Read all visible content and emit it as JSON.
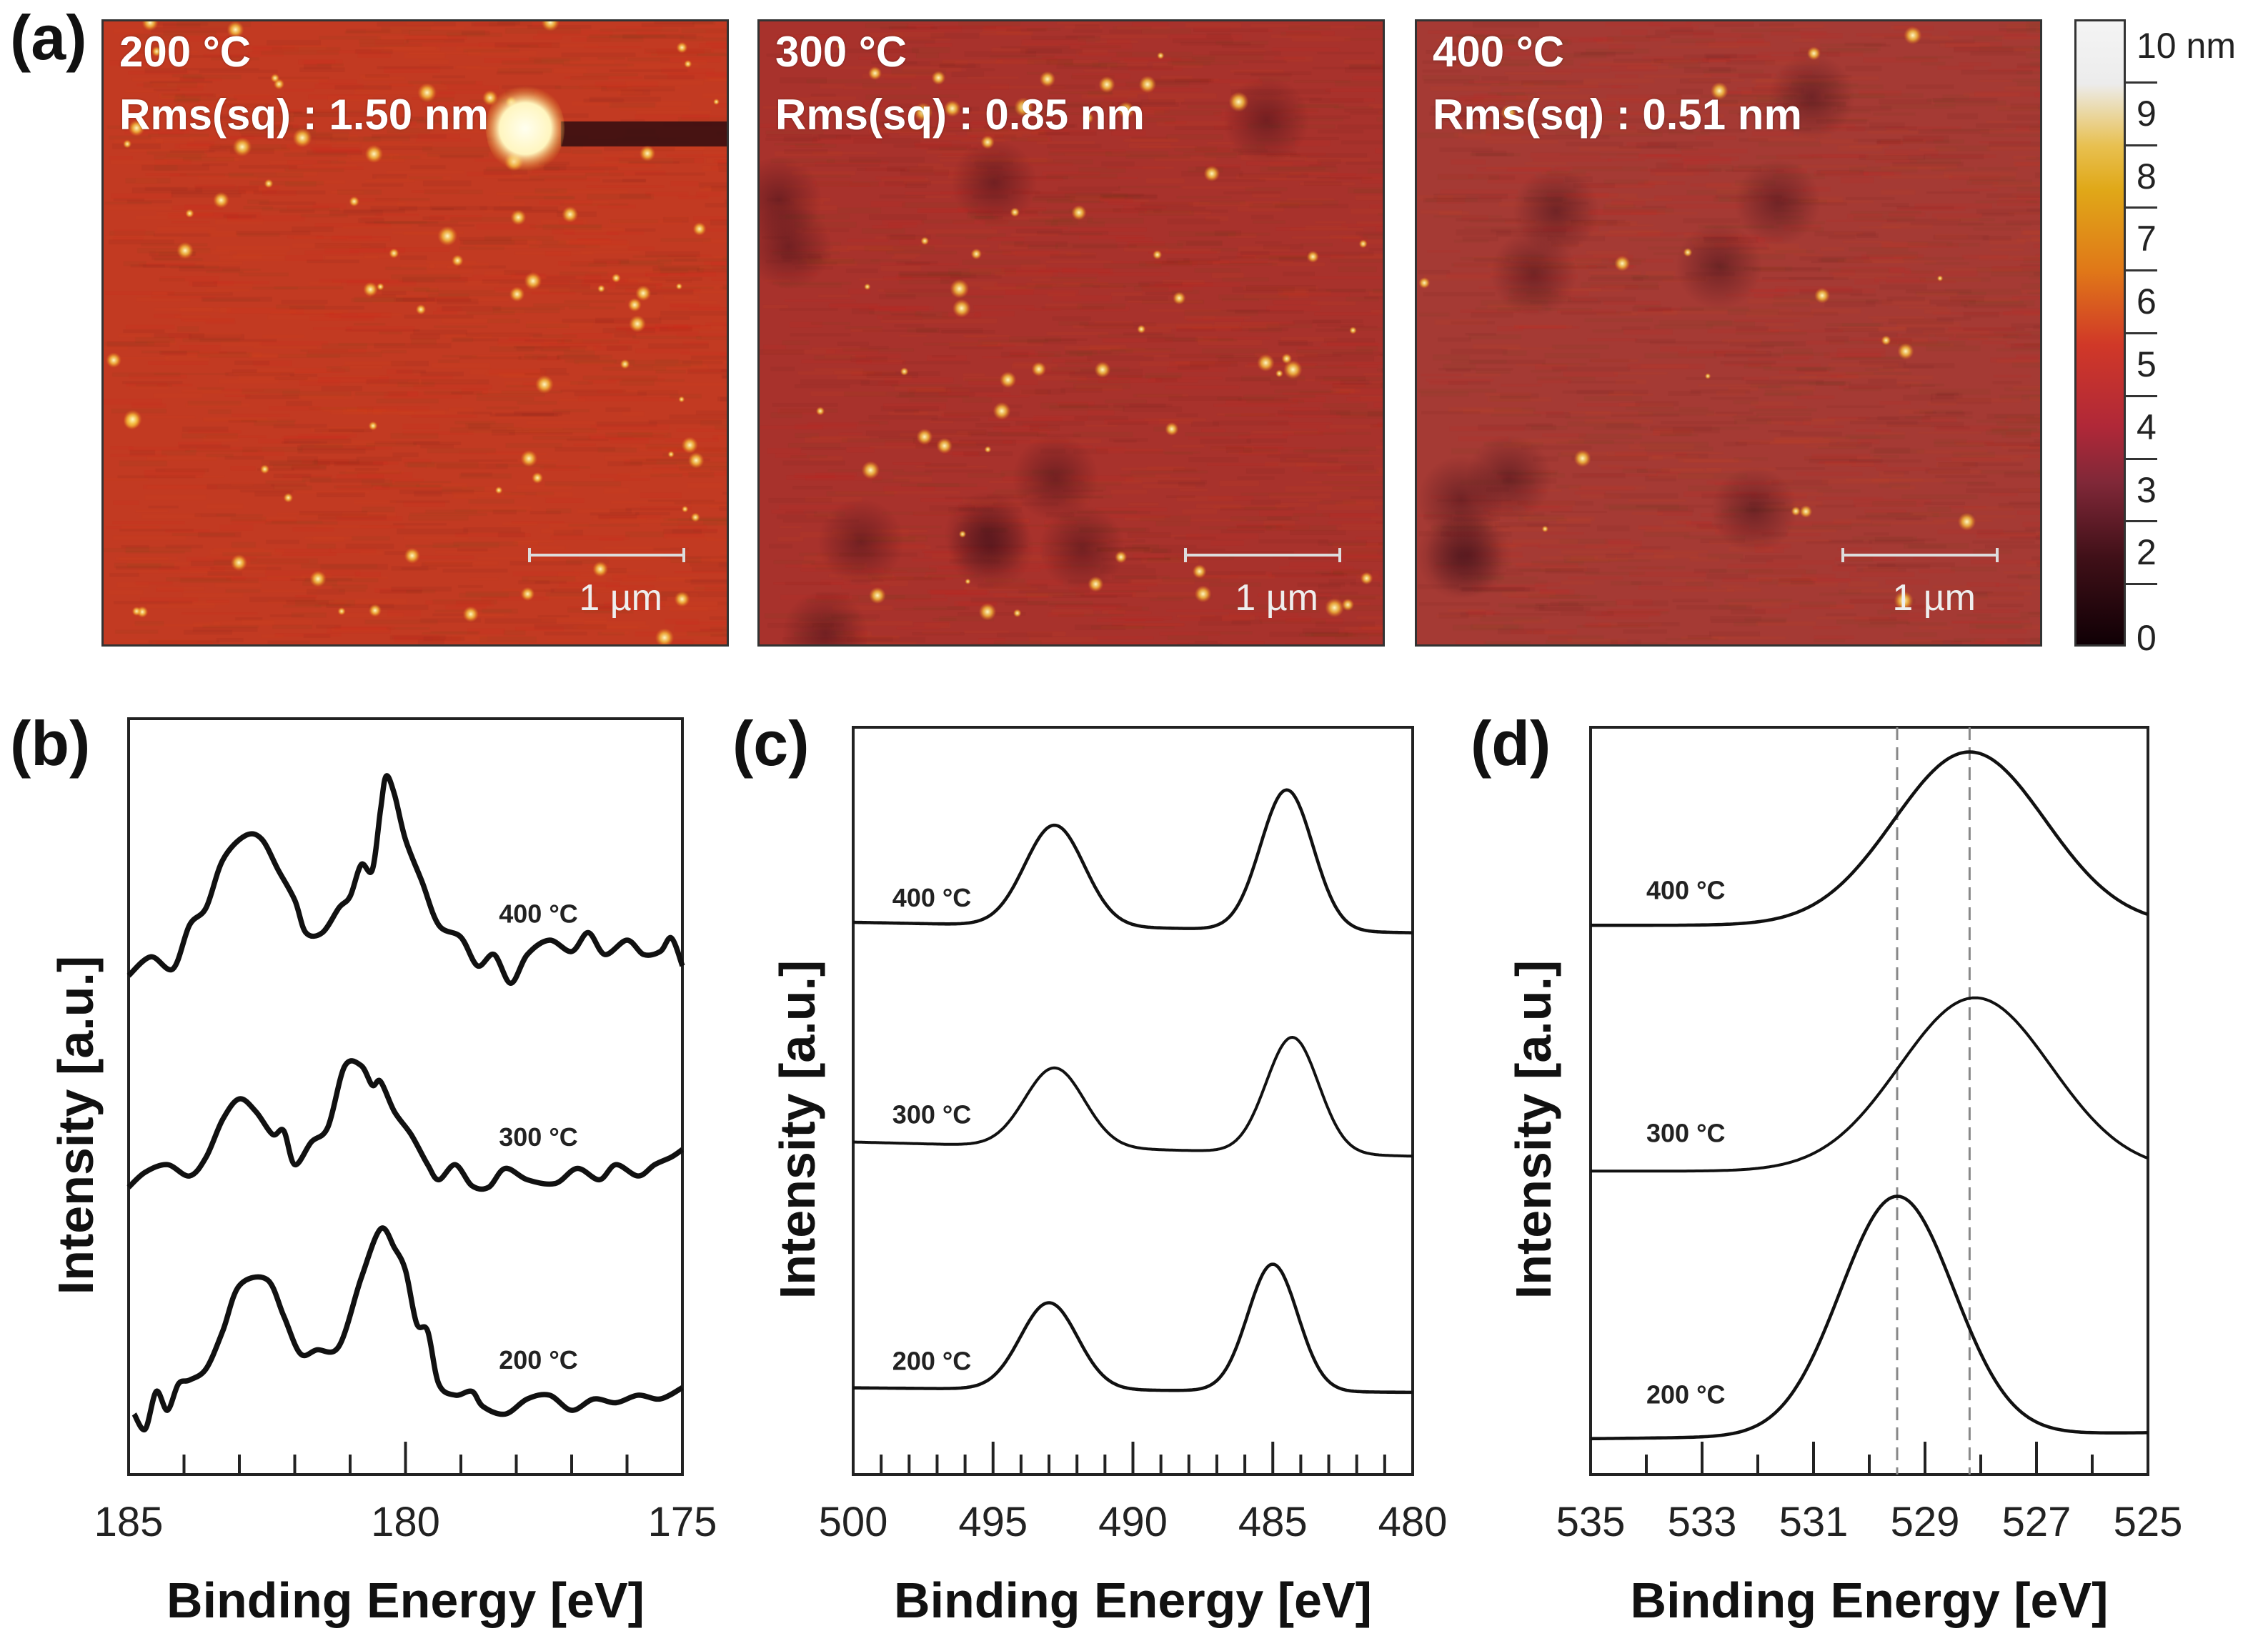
{
  "panel_labels": {
    "a": "(a)",
    "b": "(b)",
    "c": "(c)",
    "d": "(d)"
  },
  "afm": [
    {
      "temp": "200 °C",
      "rms": "Rms(sq) : 1.50 nm",
      "scale": "1 µm",
      "base_color": "#c23a22"
    },
    {
      "temp": "300 °C",
      "rms": "Rms(sq) : 0.85 nm",
      "scale": "1 µm",
      "base_color": "#a8322c"
    },
    {
      "temp": "400 °C",
      "rms": "Rms(sq) : 0.51 nm",
      "scale": "1 µm",
      "base_color": "#a53a34"
    }
  ],
  "colorbar": {
    "unit_label": "10 nm",
    "ticks": [
      "9",
      "8",
      "7",
      "6",
      "5",
      "4",
      "3",
      "2",
      "0"
    ],
    "range": [
      0,
      10
    ]
  },
  "chart_data": [
    {
      "id": "b",
      "type": "line",
      "xlabel": "Binding Energy [eV]",
      "ylabel": "Intensity [a.u.]",
      "xlim": [
        185,
        175
      ],
      "ylim": [
        0,
        10
      ],
      "xticks_major": [
        185,
        180,
        175
      ],
      "xtick_labels": [
        "185",
        "180",
        "175"
      ],
      "minor_step": 1,
      "series": [
        {
          "name": "400 °C",
          "label_at": [
            177.6,
            7.3
          ],
          "points": [
            [
              185,
              6.6
            ],
            [
              184.6,
              6.85
            ],
            [
              184.2,
              6.69
            ],
            [
              183.9,
              7.27
            ],
            [
              183.6,
              7.5
            ],
            [
              183.3,
              8.13
            ],
            [
              182.9,
              8.45
            ],
            [
              182.6,
              8.41
            ],
            [
              182.3,
              8.0
            ],
            [
              182.0,
              7.6
            ],
            [
              181.8,
              7.17
            ],
            [
              181.5,
              7.17
            ],
            [
              181.2,
              7.5
            ],
            [
              181.0,
              7.65
            ],
            [
              180.8,
              8.07
            ],
            [
              180.6,
              8.0
            ],
            [
              180.45,
              8.8
            ],
            [
              180.35,
              9.24
            ],
            [
              180.2,
              9.0
            ],
            [
              180.0,
              8.4
            ],
            [
              179.7,
              7.84
            ],
            [
              179.4,
              7.27
            ],
            [
              179.0,
              7.11
            ],
            [
              178.7,
              6.73
            ],
            [
              178.4,
              6.88
            ],
            [
              178.1,
              6.5
            ],
            [
              177.8,
              6.88
            ],
            [
              177.4,
              7.07
            ],
            [
              177.0,
              6.92
            ],
            [
              176.7,
              7.17
            ],
            [
              176.4,
              6.88
            ],
            [
              176.0,
              7.07
            ],
            [
              175.7,
              6.88
            ],
            [
              175.4,
              6.92
            ],
            [
              175.2,
              7.1
            ],
            [
              175.0,
              6.73
            ]
          ]
        },
        {
          "name": "300 °C",
          "label_at": [
            177.6,
            4.35
          ],
          "points": [
            [
              185,
              3.8
            ],
            [
              184.7,
              4.0
            ],
            [
              184.3,
              4.1
            ],
            [
              183.9,
              3.95
            ],
            [
              183.6,
              4.2
            ],
            [
              183.3,
              4.7
            ],
            [
              183.0,
              4.97
            ],
            [
              182.7,
              4.8
            ],
            [
              182.4,
              4.5
            ],
            [
              182.2,
              4.55
            ],
            [
              182.0,
              4.1
            ],
            [
              181.7,
              4.4
            ],
            [
              181.4,
              4.6
            ],
            [
              181.1,
              5.4
            ],
            [
              180.8,
              5.41
            ],
            [
              180.6,
              5.15
            ],
            [
              180.45,
              5.2
            ],
            [
              180.2,
              4.8
            ],
            [
              179.9,
              4.5
            ],
            [
              179.6,
              4.1
            ],
            [
              179.4,
              3.9
            ],
            [
              179.1,
              4.1
            ],
            [
              178.8,
              3.82
            ],
            [
              178.5,
              3.8
            ],
            [
              178.2,
              4.05
            ],
            [
              177.8,
              3.9
            ],
            [
              177.3,
              3.85
            ],
            [
              176.9,
              4.05
            ],
            [
              176.5,
              3.9
            ],
            [
              176.2,
              4.1
            ],
            [
              175.8,
              3.95
            ],
            [
              175.5,
              4.1
            ],
            [
              175.2,
              4.2
            ],
            [
              175.0,
              4.3
            ]
          ]
        },
        {
          "name": "200 °C",
          "label_at": [
            177.6,
            1.4
          ],
          "points": [
            [
              184.9,
              0.8
            ],
            [
              184.7,
              0.6
            ],
            [
              184.5,
              1.1
            ],
            [
              184.3,
              0.85
            ],
            [
              184.1,
              1.2
            ],
            [
              183.9,
              1.25
            ],
            [
              183.6,
              1.4
            ],
            [
              183.3,
              1.9
            ],
            [
              183.0,
              2.5
            ],
            [
              182.5,
              2.58
            ],
            [
              182.2,
              2.1
            ],
            [
              181.9,
              1.6
            ],
            [
              181.6,
              1.65
            ],
            [
              181.2,
              1.7
            ],
            [
              180.8,
              2.6
            ],
            [
              180.45,
              3.25
            ],
            [
              180.2,
              3.0
            ],
            [
              180.0,
              2.7
            ],
            [
              179.8,
              2.0
            ],
            [
              179.6,
              1.9
            ],
            [
              179.4,
              1.2
            ],
            [
              179.1,
              1.05
            ],
            [
              178.8,
              1.1
            ],
            [
              178.6,
              0.9
            ],
            [
              178.2,
              0.8
            ],
            [
              177.8,
              1.0
            ],
            [
              177.4,
              1.05
            ],
            [
              177.0,
              0.85
            ],
            [
              176.6,
              1.0
            ],
            [
              176.2,
              0.95
            ],
            [
              175.8,
              1.05
            ],
            [
              175.4,
              1.0
            ],
            [
              175.0,
              1.15
            ]
          ]
        }
      ]
    },
    {
      "id": "c",
      "type": "line",
      "xlabel": "Binding Energy [eV]",
      "ylabel": "Intensity [a.u.]",
      "xlim": [
        500,
        480
      ],
      "ylim": [
        0,
        10
      ],
      "xticks_major": [
        500,
        495,
        490,
        485,
        480
      ],
      "xtick_labels": [
        "500",
        "495",
        "490",
        "485",
        "480"
      ],
      "minor_step": 1,
      "series": [
        {
          "name": "400 °C",
          "label_at": [
            498.6,
            7.6
          ],
          "baseline": [
            7.39,
            7.25
          ],
          "peaks": [
            [
              492.8,
              1.35,
              2.5
            ],
            [
              484.5,
              1.88,
              2.2
            ]
          ]
        },
        {
          "name": "300 °C",
          "label_at": [
            498.6,
            4.7
          ],
          "baseline": [
            4.45,
            4.26
          ],
          "peaks": [
            [
              492.8,
              1.06,
              2.5
            ],
            [
              484.3,
              1.55,
              2.2
            ]
          ]
        },
        {
          "name": "200 °C",
          "label_at": [
            498.6,
            1.4
          ],
          "baseline": [
            1.16,
            1.1
          ],
          "peaks": [
            [
              493.0,
              1.16,
              2.4
            ],
            [
              485.0,
              1.7,
              2.1
            ]
          ]
        }
      ]
    },
    {
      "id": "d",
      "type": "line",
      "xlabel": "Binding Energy [eV]",
      "ylabel": "Intensity [a.u.]",
      "xlim": [
        535,
        525
      ],
      "ylim": [
        0,
        10
      ],
      "xticks_major": [
        535,
        533,
        531,
        529,
        527,
        525
      ],
      "xtick_labels": [
        "535",
        "533",
        "531",
        "529",
        "527",
        "525"
      ],
      "minor_step": 1,
      "reference_lines": [
        529.5,
        528.2
      ],
      "series": [
        {
          "name": "400 °C",
          "label_at": [
            534.0,
            7.7
          ],
          "baseline": [
            7.35,
            7.35
          ],
          "peaks": [
            [
              528.2,
              2.32,
              3.2
            ]
          ]
        },
        {
          "name": "300 °C",
          "label_at": [
            534.0,
            4.45
          ],
          "baseline": [
            4.06,
            4.06
          ],
          "peaks": [
            [
              528.1,
              2.32,
              3.2
            ]
          ]
        },
        {
          "name": "200 °C",
          "label_at": [
            534.0,
            0.95
          ],
          "baseline": [
            0.48,
            0.56
          ],
          "peaks": [
            [
              529.5,
              3.2,
              2.4
            ]
          ]
        }
      ]
    }
  ]
}
